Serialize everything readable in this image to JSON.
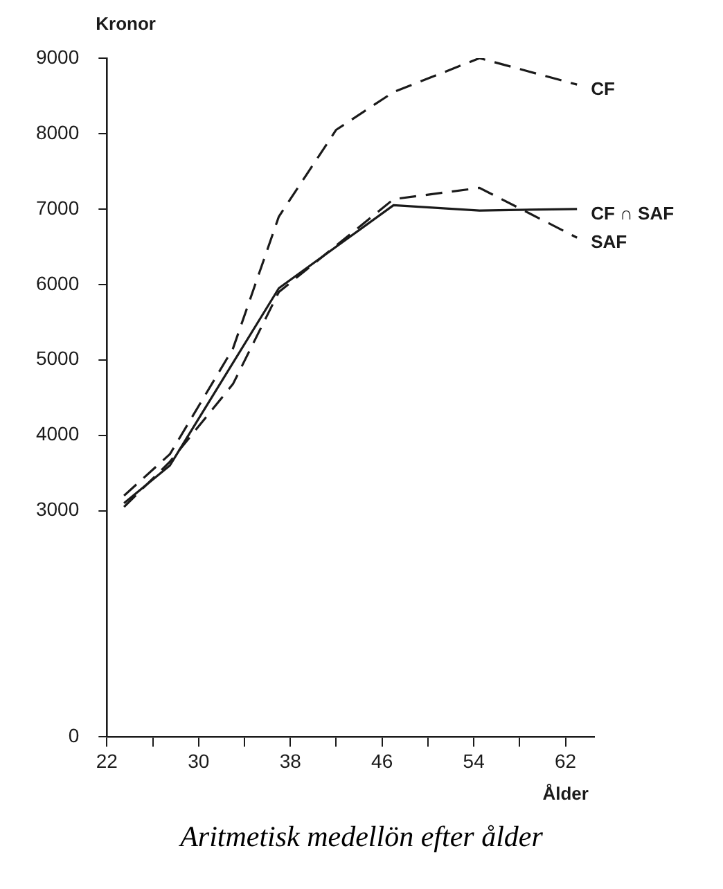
{
  "chart_data": {
    "type": "line",
    "title": "Aritmetisk medellön efter ålder",
    "xlabel": "Ålder",
    "ylabel": "Kronor",
    "xlim": [
      22,
      64.5
    ],
    "xticks": [
      22,
      {
        "value": 26,
        "label": null
      },
      30,
      {
        "value": 34,
        "label": null
      },
      38,
      {
        "value": 42,
        "label": null
      },
      46,
      {
        "value": 50,
        "label": null
      },
      54,
      {
        "value": 58,
        "label": null
      },
      62
    ],
    "ylim": [
      0,
      9000
    ],
    "yticks": [
      0,
      3000,
      4000,
      5000,
      6000,
      7000,
      8000,
      9000
    ],
    "grid": false,
    "legend": false,
    "marker": "none",
    "series": [
      {
        "name": "CF",
        "color": "#1a1a1a",
        "line_style": "dashed",
        "x": [
          23.5,
          27.5,
          33,
          37,
          42,
          47,
          54.5,
          63
        ],
        "values": [
          3200,
          3750,
          5150,
          6900,
          8050,
          8550,
          9000,
          8650
        ]
      },
      {
        "name": "CF ∩ SAF",
        "color": "#1a1a1a",
        "line_style": "solid",
        "x": [
          23.5,
          27.5,
          37,
          47,
          54.5,
          63
        ],
        "values": [
          3100,
          3600,
          5950,
          7050,
          6980,
          7000
        ]
      },
      {
        "name": "SAF",
        "color": "#1a1a1a",
        "line_style": "dashed",
        "x": [
          23.5,
          27.5,
          33,
          37,
          47,
          54.5,
          63
        ],
        "values": [
          3050,
          3650,
          4680,
          5900,
          7130,
          7280,
          6620
        ]
      }
    ]
  }
}
